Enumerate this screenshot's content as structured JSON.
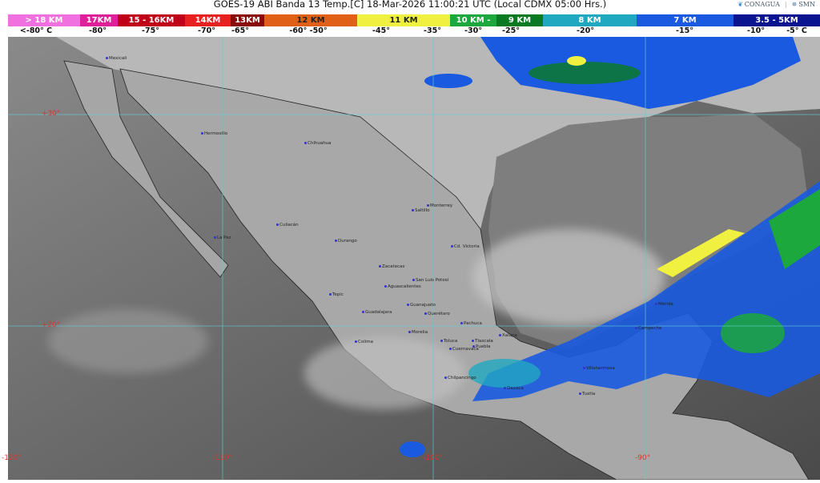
{
  "header": {
    "title": "GOES-19 ABI Banda 13 Temp.[C] 18-Mar-2026 11:00:21 UTC (Local CDMX  05:00 Hrs.)",
    "logos": [
      "CONAGUA",
      "SMN"
    ]
  },
  "legend": {
    "bands": [
      {
        "label": "> 18 KM",
        "color": "#f070e0"
      },
      {
        "label": "17KM",
        "color": "#e0209a"
      },
      {
        "label": "15 - 16KM",
        "color": "#c00018"
      },
      {
        "label": "14KM",
        "color": "#e82020"
      },
      {
        "label": "13KM",
        "color": "#8a0a0a"
      },
      {
        "label": "12 KM",
        "color": "#e06018"
      },
      {
        "label": "11 KM",
        "color": "#f0f040"
      },
      {
        "label": "10 KM -",
        "color": "#1ca83c"
      },
      {
        "label": "9 KM",
        "color": "#0a7a22"
      },
      {
        "label": "8 KM",
        "color": "#20a8c0"
      },
      {
        "label": "7 KM",
        "color": "#1a5ae0"
      },
      {
        "label": "3.5 - 5KM",
        "color": "#0a1490"
      }
    ],
    "temps": [
      "<-80° C",
      "-80°",
      "-75°",
      "-70°",
      "-65°",
      "-60° -50°",
      "-45°",
      "-35°",
      "-30°",
      "-25°",
      "-20°",
      "-15°",
      "-10°",
      "-5° C"
    ]
  },
  "map": {
    "lat_labels": [
      "+30°",
      "+20°"
    ],
    "lon_labels": [
      "-120°",
      "-110°",
      "-100°",
      "-90°"
    ],
    "cities": [
      "Mexicali",
      "Hermosillo",
      "Chihuahua",
      "Culiacán",
      "La Paz",
      "Durango",
      "Saltillo",
      "Monterrey",
      "Cd. Victoria",
      "Zacatecas",
      "San Luis Potosí",
      "Aguascalientes",
      "Tepic",
      "Guanajuato",
      "Guadalajara",
      "Querétaro",
      "Pachuca",
      "Morelia",
      "Colima",
      "Toluca",
      "Tlaxcala",
      "Cuernavaca",
      "Puebla",
      "Xalapa",
      "Chilpancingo",
      "Oaxaca",
      "Villahermosa",
      "Tuxtla",
      "Campeche",
      "Mérida"
    ]
  }
}
